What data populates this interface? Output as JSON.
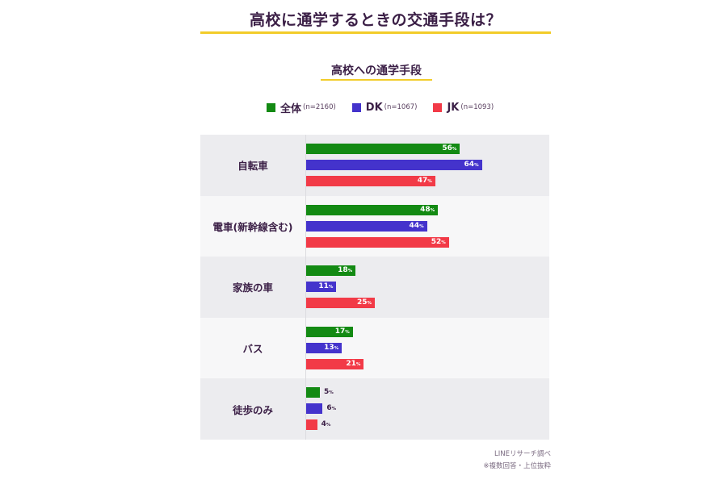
{
  "header": {
    "title": "高校に通学するときの交通手段は？",
    "subtitle": "高校への通学手段"
  },
  "legend": [
    {
      "label": "全体",
      "n": "(n=2160)",
      "color": "#138a13"
    },
    {
      "label": "DK",
      "n": "(n=1067)",
      "color": "#4433cc"
    },
    {
      "label": "JK",
      "n": "(n=1093)",
      "color": "#f23a47"
    }
  ],
  "chart_data": {
    "type": "bar",
    "orientation": "horizontal",
    "title": "高校への通学手段",
    "categories": [
      "自転車",
      "電車(新幹線含む)",
      "家族の車",
      "バス",
      "徒歩のみ"
    ],
    "series": [
      {
        "name": "全体(n=2160)",
        "color": "#138a13",
        "values": [
          56,
          48,
          18,
          17,
          5
        ]
      },
      {
        "name": "DK(n=1067)",
        "color": "#4433cc",
        "values": [
          64,
          44,
          11,
          13,
          6
        ]
      },
      {
        "name": "JK(n=1093)",
        "color": "#f23a47",
        "values": [
          47,
          52,
          25,
          21,
          4
        ]
      }
    ],
    "unit": "%",
    "xlabel": "",
    "ylabel": "",
    "xlim": [
      0,
      100
    ],
    "grid": false,
    "legend_position": "top"
  },
  "footer": {
    "source": "LINEリサーチ調べ",
    "note": "※複数回答・上位抜粋"
  }
}
